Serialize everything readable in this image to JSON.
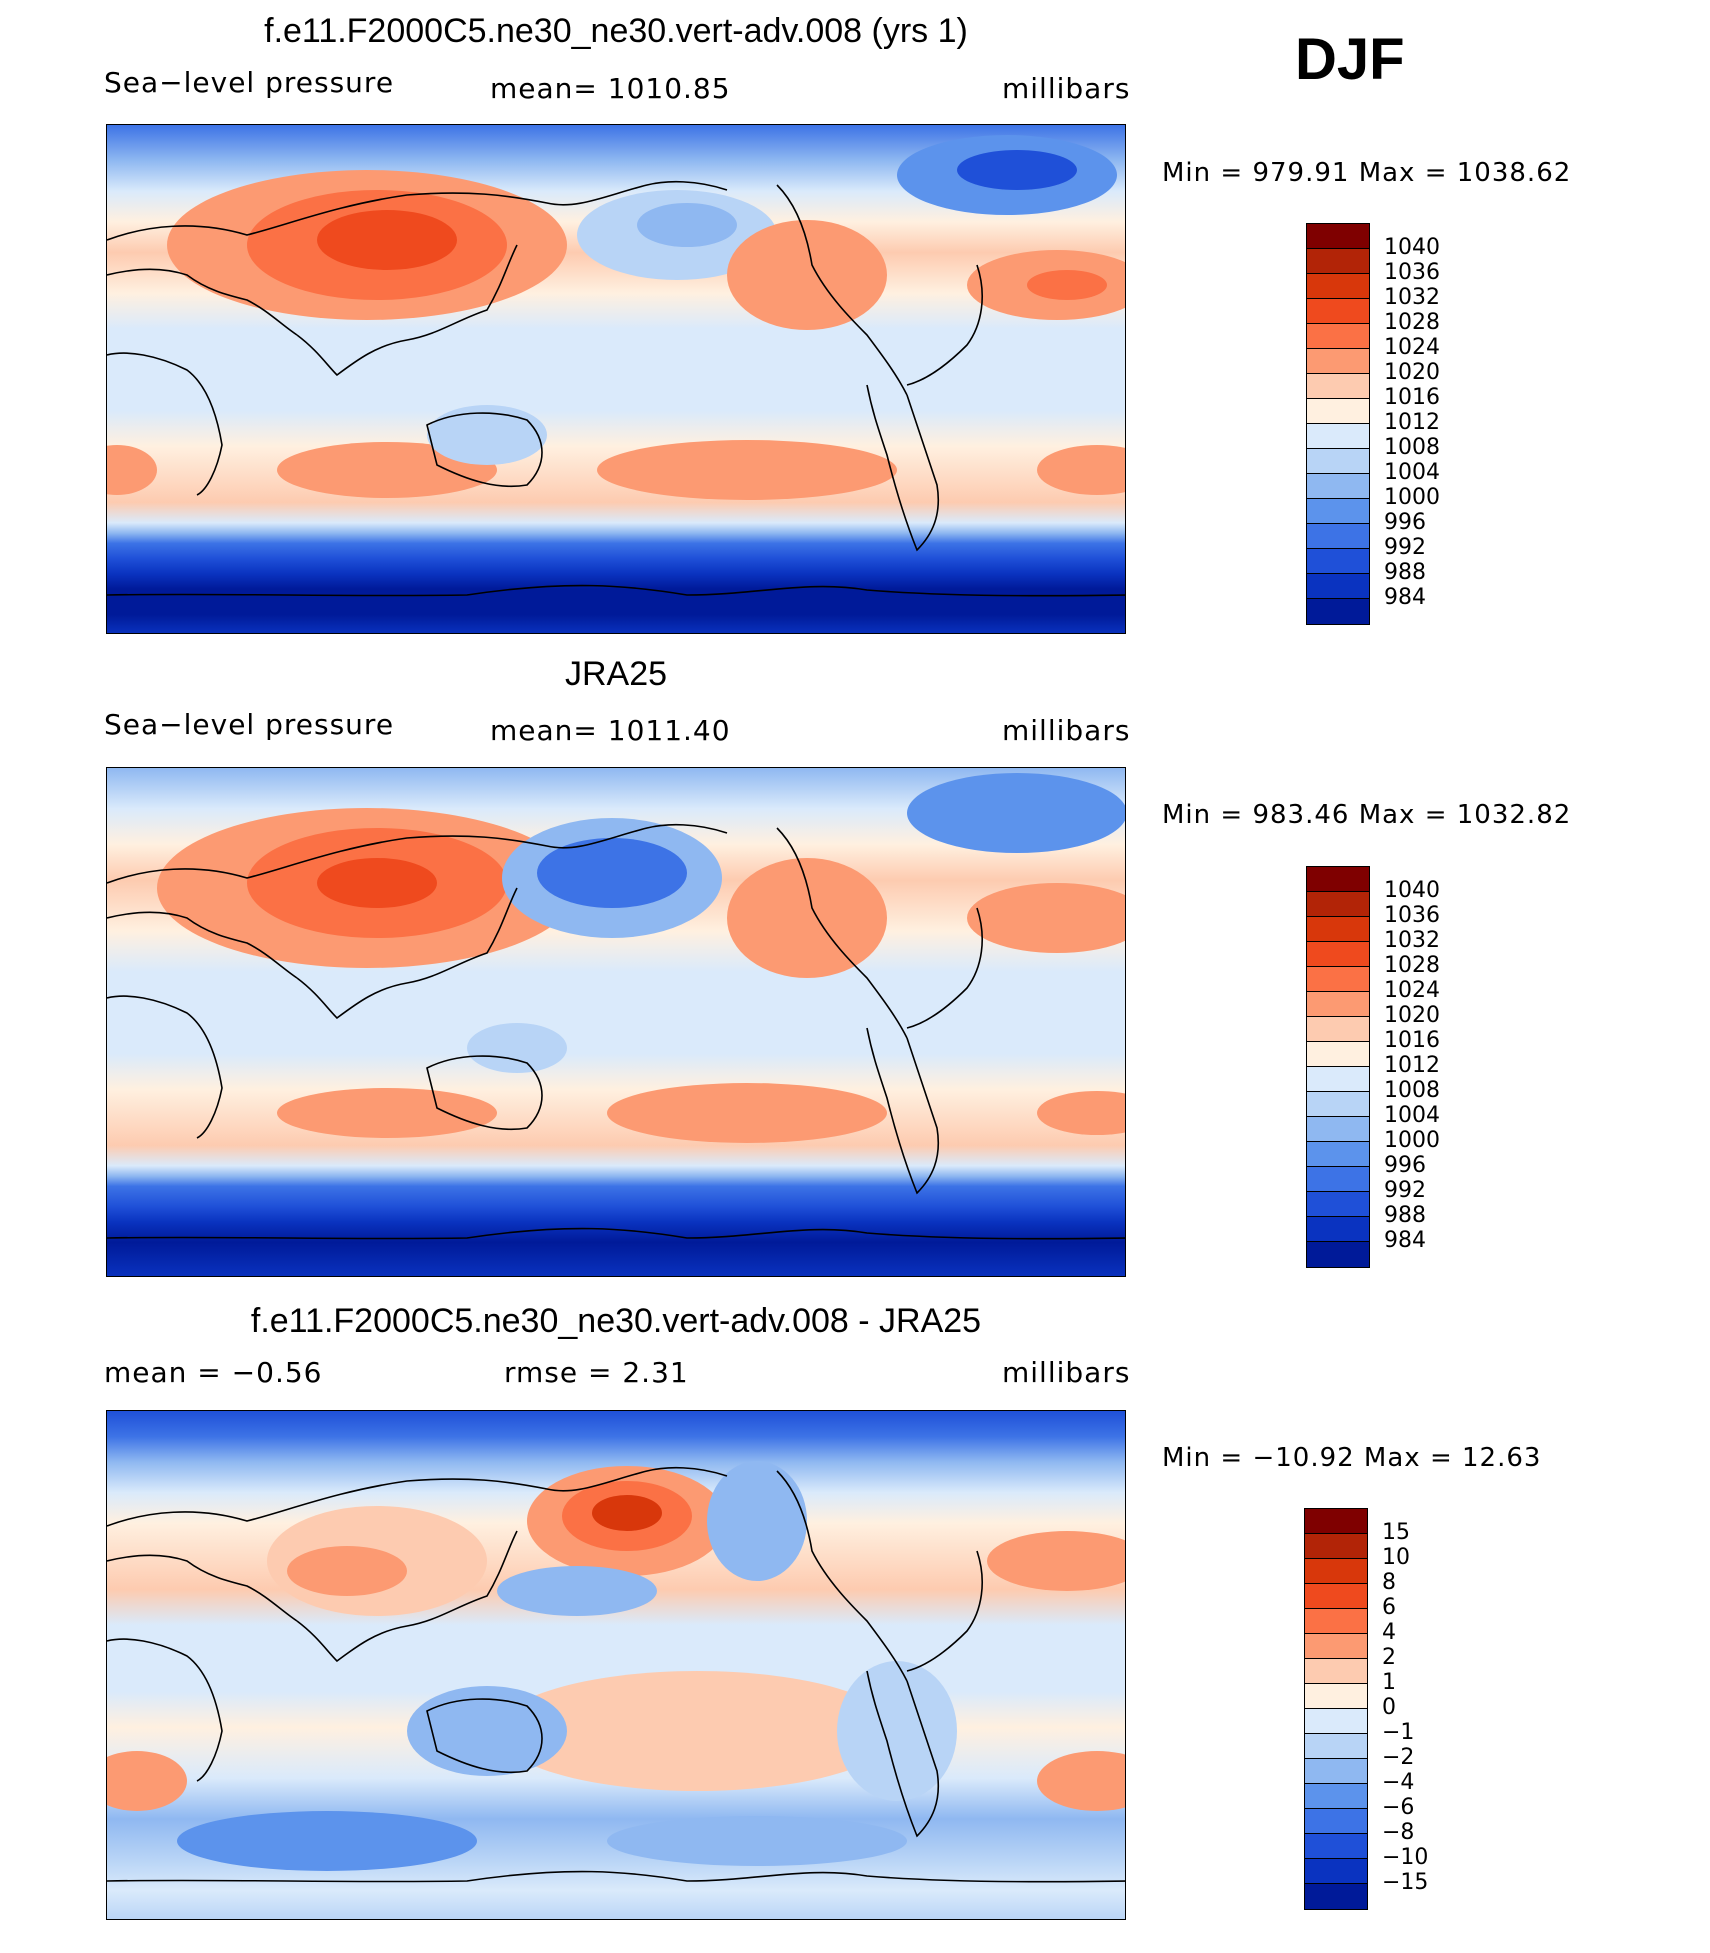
{
  "season": "DJF",
  "panels": [
    {
      "title": "f.e11.F2000C5.ne30_ne30.vert-adv.008 (yrs 1)",
      "left_label": "Sea−level pressure",
      "center_label": "mean=  1010.85",
      "units": "millibars",
      "minmax": "Min  =  979.91  Max  =  1038.62",
      "kind": "model",
      "colorbar": {
        "colors": [
          "#7f0000",
          "#b22407",
          "#d8370b",
          "#ef4a1e",
          "#fb7145",
          "#fc9a72",
          "#fdcbb0",
          "#fff0e0",
          "#daeafb",
          "#b8d4f6",
          "#8fb8f1",
          "#5c93ec",
          "#3d73e6",
          "#1f50d8",
          "#0a33c0",
          "#001a99"
        ],
        "labels": [
          "1040",
          "1036",
          "1032",
          "1028",
          "1024",
          "1020",
          "1016",
          "1012",
          "1008",
          "1004",
          "1000",
          "996",
          "992",
          "988",
          "984"
        ]
      }
    },
    {
      "title": "JRA25",
      "left_label": "Sea−level pressure",
      "center_label": "mean=  1011.40",
      "units": "millibars",
      "minmax": "Min  =  983.46  Max  =  1032.82",
      "kind": "obs",
      "colorbar": {
        "colors": [
          "#7f0000",
          "#b22407",
          "#d8370b",
          "#ef4a1e",
          "#fb7145",
          "#fc9a72",
          "#fdcbb0",
          "#fff0e0",
          "#daeafb",
          "#b8d4f6",
          "#8fb8f1",
          "#5c93ec",
          "#3d73e6",
          "#1f50d8",
          "#0a33c0",
          "#001a99"
        ],
        "labels": [
          "1040",
          "1036",
          "1032",
          "1028",
          "1024",
          "1020",
          "1016",
          "1012",
          "1008",
          "1004",
          "1000",
          "996",
          "992",
          "988",
          "984"
        ]
      }
    },
    {
      "title": "f.e11.F2000C5.ne30_ne30.vert-adv.008 - JRA25",
      "left_label": "mean  =    −0.56",
      "center_label": "rmse  =     2.31",
      "units": "millibars",
      "minmax": "Min  =  −10.92  Max  =    12.63",
      "kind": "diff",
      "colorbar": {
        "colors": [
          "#7f0000",
          "#b22407",
          "#d8370b",
          "#ef4a1e",
          "#fb7145",
          "#fc9a72",
          "#fdcbb0",
          "#fff0e0",
          "#daeafb",
          "#b8d4f6",
          "#8fb8f1",
          "#5c93ec",
          "#3d73e6",
          "#1f50d8",
          "#0a33c0",
          "#001a99"
        ],
        "labels": [
          "15",
          "10",
          "8",
          "6",
          "4",
          "2",
          "1",
          "0",
          "−1",
          "−2",
          "−4",
          "−6",
          "−8",
          "−10",
          "−15"
        ]
      }
    }
  ]
}
